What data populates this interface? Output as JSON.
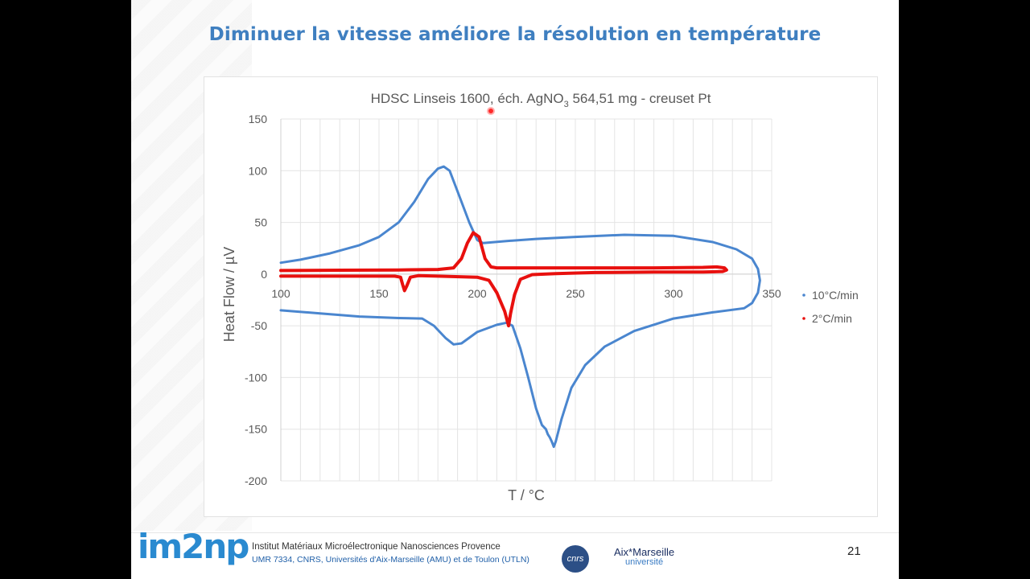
{
  "slide": {
    "title": "Diminuer la vitesse améliore la résolution en température",
    "page_number": "21",
    "footer": {
      "institute": "Institut Matériaux Microélectronique Nanosciences Provence",
      "address": "UMR 7334, CNRS, Universités d'Aix-Marseille (AMU) et de Toulon (UTLN)",
      "logo_imnp": "im2np",
      "logo_cnrs": "cnrs",
      "logo_amu_main": "Aix*Marseille",
      "logo_amu_sub": "université"
    }
  },
  "colors": {
    "title": "#3f7fc0",
    "series_10": "#4a86cf",
    "series_2": "#e8100e",
    "grid": "#e4e4e4",
    "axis_text": "#595959"
  },
  "chart_data": {
    "type": "scatter",
    "title_main": "HDSC Linseis 1600, éch. AgNO",
    "title_subscript": "3",
    "title_rest": " 564,51 mg - creuset Pt",
    "xlabel": "T / °C",
    "ylabel": "Heat Flow / µV",
    "xlim": [
      100,
      350
    ],
    "ylim": [
      -200,
      150
    ],
    "x_ticks": [
      100,
      150,
      200,
      250,
      300,
      350
    ],
    "y_ticks": [
      150,
      100,
      50,
      0,
      -50,
      -100,
      -150,
      -200
    ],
    "grid": true,
    "legend_position": "right",
    "series": [
      {
        "name": "10°C/min",
        "color": "#4a86cf",
        "points": [
          [
            100,
            -35
          ],
          [
            120,
            -38
          ],
          [
            140,
            -41
          ],
          [
            160,
            -42.5
          ],
          [
            172,
            -43
          ],
          [
            178,
            -50
          ],
          [
            184,
            -62
          ],
          [
            188,
            -68
          ],
          [
            192,
            -67
          ],
          [
            200,
            -56
          ],
          [
            210,
            -49
          ],
          [
            215,
            -47
          ],
          [
            218,
            -50
          ],
          [
            222,
            -72
          ],
          [
            226,
            -100
          ],
          [
            230,
            -130
          ],
          [
            233,
            -146
          ],
          [
            235,
            -150
          ],
          [
            236,
            -155
          ],
          [
            237,
            -158
          ],
          [
            238,
            -162
          ],
          [
            239,
            -167
          ],
          [
            240,
            -162
          ],
          [
            243,
            -140
          ],
          [
            248,
            -110
          ],
          [
            255,
            -88
          ],
          [
            265,
            -70
          ],
          [
            280,
            -55
          ],
          [
            300,
            -43
          ],
          [
            320,
            -37
          ],
          [
            336,
            -33
          ],
          [
            340,
            -28
          ],
          [
            343,
            -18
          ],
          [
            344,
            -6
          ],
          [
            343,
            5
          ],
          [
            340,
            15
          ],
          [
            332,
            24
          ],
          [
            320,
            31
          ],
          [
            300,
            37
          ],
          [
            275,
            38
          ],
          [
            250,
            36
          ],
          [
            230,
            34
          ],
          [
            215,
            32
          ],
          [
            203,
            30
          ],
          [
            200,
            33
          ],
          [
            196,
            50
          ],
          [
            190,
            80
          ],
          [
            186,
            100
          ],
          [
            183,
            104
          ],
          [
            180,
            102
          ],
          [
            175,
            92
          ],
          [
            168,
            70
          ],
          [
            160,
            50
          ],
          [
            150,
            36
          ],
          [
            140,
            28
          ],
          [
            125,
            20
          ],
          [
            110,
            14
          ],
          [
            100,
            11
          ]
        ]
      },
      {
        "name": "2°C/min",
        "color": "#e8100e",
        "points": [
          [
            100,
            3.5
          ],
          [
            130,
            3.8
          ],
          [
            160,
            4
          ],
          [
            180,
            4.5
          ],
          [
            188,
            6
          ],
          [
            192,
            15
          ],
          [
            195,
            30
          ],
          [
            198,
            40
          ],
          [
            201,
            36
          ],
          [
            204,
            15
          ],
          [
            207,
            7
          ],
          [
            210,
            6
          ],
          [
            230,
            6
          ],
          [
            260,
            6
          ],
          [
            290,
            6
          ],
          [
            315,
            6.5
          ],
          [
            322,
            7
          ],
          [
            326,
            6
          ],
          [
            327,
            4
          ],
          [
            325,
            2.5
          ],
          [
            315,
            2
          ],
          [
            290,
            2
          ],
          [
            260,
            1.5
          ],
          [
            240,
            0.5
          ],
          [
            228,
            -0.5
          ],
          [
            222,
            -5
          ],
          [
            219,
            -20
          ],
          [
            217,
            -38
          ],
          [
            216,
            -50
          ],
          [
            214,
            -36
          ],
          [
            210,
            -18
          ],
          [
            206,
            -6
          ],
          [
            200,
            -3
          ],
          [
            180,
            -2
          ],
          [
            170,
            -1.5
          ],
          [
            166,
            -3
          ],
          [
            164,
            -12
          ],
          [
            163,
            -16
          ],
          [
            162,
            -10
          ],
          [
            161,
            -3
          ],
          [
            158,
            -2
          ],
          [
            130,
            -2
          ],
          [
            100,
            -2
          ]
        ]
      }
    ]
  }
}
